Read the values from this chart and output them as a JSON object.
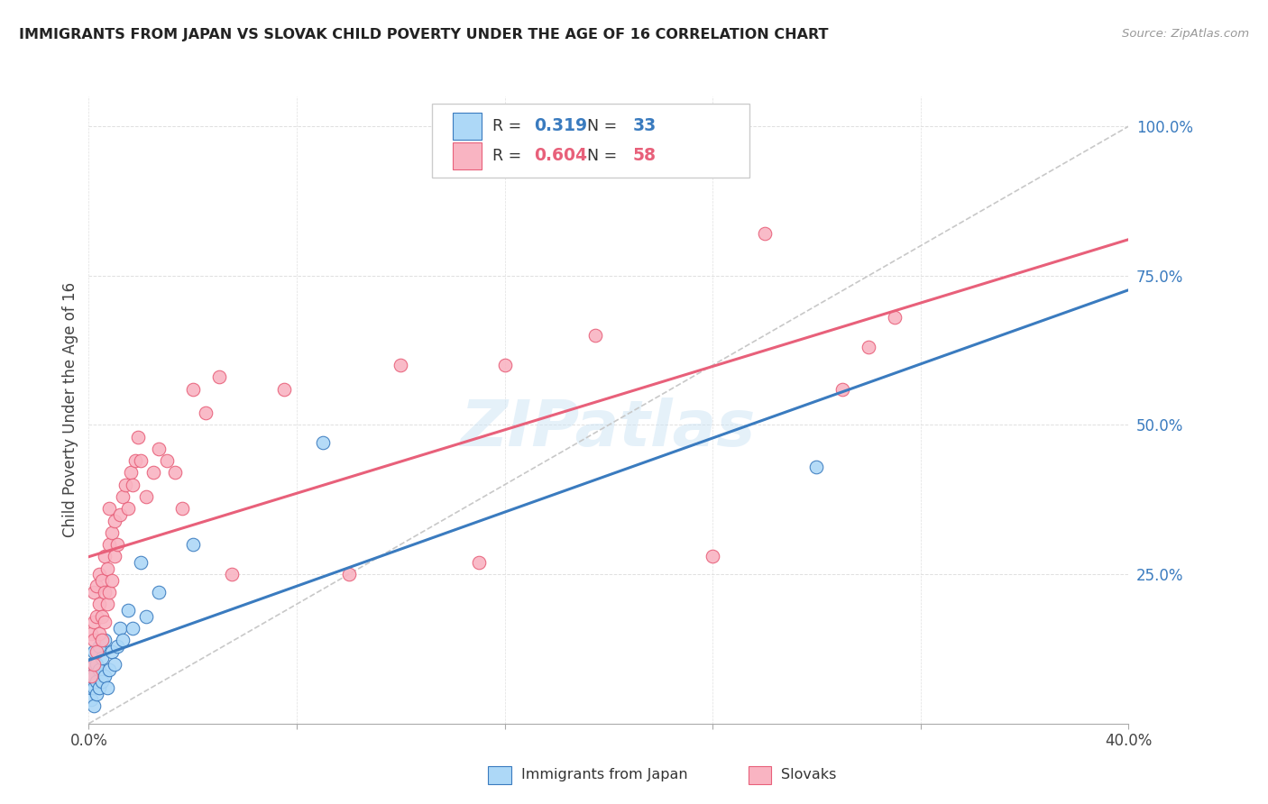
{
  "title": "IMMIGRANTS FROM JAPAN VS SLOVAK CHILD POVERTY UNDER THE AGE OF 16 CORRELATION CHART",
  "source": "Source: ZipAtlas.com",
  "ylabel": "Child Poverty Under the Age of 16",
  "blue_R": "0.319",
  "blue_N": "33",
  "pink_R": "0.604",
  "pink_N": "58",
  "blue_color": "#add8f7",
  "pink_color": "#f9b4c2",
  "blue_line_color": "#3a7bbf",
  "pink_line_color": "#e8607a",
  "dashed_line_color": "#c8c8c8",
  "watermark": "ZIPatlas",
  "x_min": 0.0,
  "x_max": 0.4,
  "y_min": 0.0,
  "y_max": 1.05,
  "blue_scatter_x": [
    0.001,
    0.001,
    0.001,
    0.001,
    0.002,
    0.002,
    0.002,
    0.002,
    0.003,
    0.003,
    0.003,
    0.004,
    0.004,
    0.004,
    0.005,
    0.005,
    0.006,
    0.006,
    0.007,
    0.008,
    0.009,
    0.01,
    0.011,
    0.012,
    0.013,
    0.015,
    0.017,
    0.02,
    0.022,
    0.027,
    0.04,
    0.09,
    0.28
  ],
  "blue_scatter_y": [
    0.04,
    0.06,
    0.08,
    0.1,
    0.03,
    0.06,
    0.08,
    0.12,
    0.05,
    0.07,
    0.1,
    0.06,
    0.09,
    0.13,
    0.07,
    0.11,
    0.08,
    0.14,
    0.06,
    0.09,
    0.12,
    0.1,
    0.13,
    0.16,
    0.14,
    0.19,
    0.16,
    0.27,
    0.18,
    0.22,
    0.3,
    0.47,
    0.43
  ],
  "pink_scatter_x": [
    0.001,
    0.001,
    0.002,
    0.002,
    0.002,
    0.002,
    0.003,
    0.003,
    0.003,
    0.004,
    0.004,
    0.004,
    0.005,
    0.005,
    0.005,
    0.006,
    0.006,
    0.006,
    0.007,
    0.007,
    0.008,
    0.008,
    0.008,
    0.009,
    0.009,
    0.01,
    0.01,
    0.011,
    0.012,
    0.013,
    0.014,
    0.015,
    0.016,
    0.017,
    0.018,
    0.019,
    0.02,
    0.022,
    0.025,
    0.027,
    0.03,
    0.033,
    0.036,
    0.04,
    0.045,
    0.05,
    0.055,
    0.075,
    0.1,
    0.12,
    0.15,
    0.16,
    0.195,
    0.24,
    0.26,
    0.29,
    0.3,
    0.31
  ],
  "pink_scatter_y": [
    0.08,
    0.15,
    0.1,
    0.14,
    0.17,
    0.22,
    0.12,
    0.18,
    0.23,
    0.15,
    0.2,
    0.25,
    0.14,
    0.18,
    0.24,
    0.17,
    0.22,
    0.28,
    0.2,
    0.26,
    0.22,
    0.3,
    0.36,
    0.24,
    0.32,
    0.28,
    0.34,
    0.3,
    0.35,
    0.38,
    0.4,
    0.36,
    0.42,
    0.4,
    0.44,
    0.48,
    0.44,
    0.38,
    0.42,
    0.46,
    0.44,
    0.42,
    0.36,
    0.56,
    0.52,
    0.58,
    0.25,
    0.56,
    0.25,
    0.6,
    0.27,
    0.6,
    0.65,
    0.28,
    0.82,
    0.56,
    0.63,
    0.68
  ],
  "legend_labels": [
    "Immigrants from Japan",
    "Slovaks"
  ],
  "background_color": "#ffffff",
  "grid_color": "#e0e0e0"
}
